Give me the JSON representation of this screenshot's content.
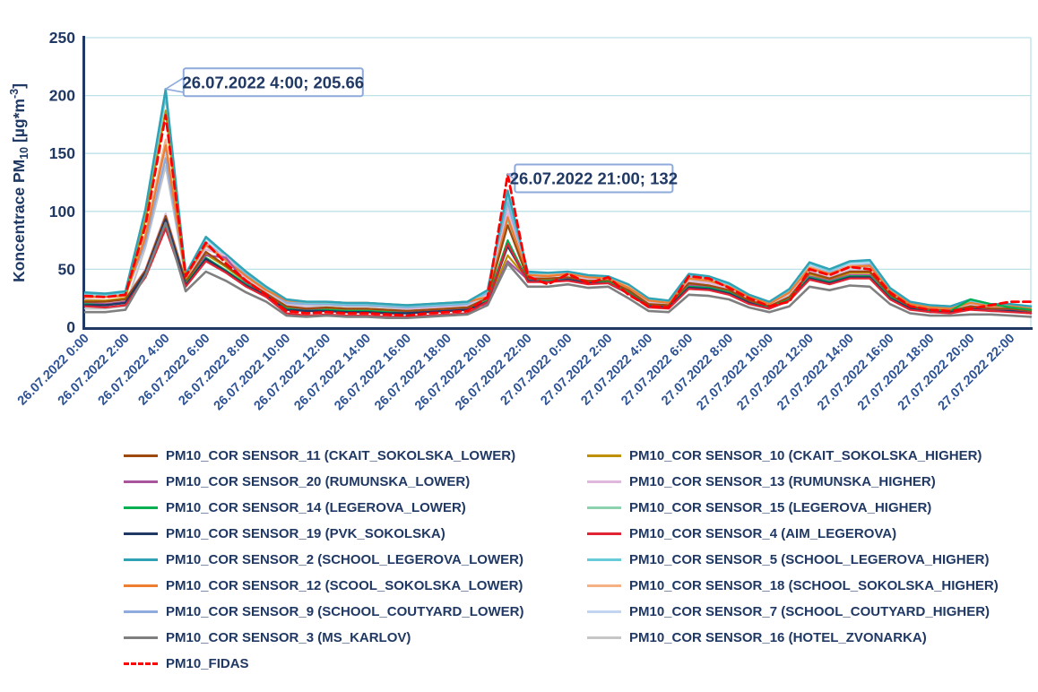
{
  "chart": {
    "y_axis": {
      "title": "Koncentrace PM10 [µg*m-3]",
      "title_parts": [
        {
          "t": "Koncentrace PM"
        },
        {
          "t": "10",
          "sub": true
        },
        {
          "t": " [µg*m"
        },
        {
          "t": "-3",
          "sup": true
        },
        {
          "t": "]"
        }
      ],
      "ticks": [
        0,
        50,
        100,
        150,
        200,
        250
      ]
    },
    "x_axis": {
      "tick_labels": [
        "26.07.2022 0:00",
        "26.07.2022 2:00",
        "26.07.2022 4:00",
        "26.07.2022 6:00",
        "26.07.2022 8:00",
        "26.07.2022 10:00",
        "26.07.2022 12:00",
        "26.07.2022 14:00",
        "26.07.2022 16:00",
        "26.07.2022 18:00",
        "26.07.2022 20:00",
        "26.07.2022 22:00",
        "27.07.2022 0:00",
        "27.07.2022 2:00",
        "27.07.2022 4:00",
        "27.07.2022 6:00",
        "27.07.2022 8:00",
        "27.07.2022 10:00",
        "27.07.2022 12:00",
        "27.07.2022 14:00",
        "27.07.2022 16:00",
        "27.07.2022 18:00",
        "27.07.2022 20:00",
        "27.07.2022 22:00"
      ]
    },
    "callouts": [
      {
        "text": "26.07.2022 4:00; 205.66",
        "point_index": 4,
        "value": 205.66
      },
      {
        "text": "26.07.2022 21:00; 132",
        "point_index": 21,
        "value": 132
      }
    ],
    "colors": {
      "axis": "#1F3864",
      "tick_text": "#1F3864",
      "x_tick_text": "#2E5395",
      "grid": "#BCE2E8",
      "callout_border": "#8EAADB",
      "callout_text": "#1F3864",
      "background": "#FFFFFF"
    }
  },
  "chart_data": {
    "type": "line",
    "title": "",
    "ylabel": "Koncentrace PM10 [µg*m-3]",
    "ylim": [
      0,
      250
    ],
    "grid": "horizontal",
    "legend_position": "bottom",
    "x_start": "26.07.2022 0:00",
    "x_end": "27.07.2022 23:00",
    "x_step_hours": 1,
    "n_points": 48,
    "annotated_points": [
      {
        "label": "26.07.2022 4:00; 205.66",
        "series": "PM10_COR SENSOR_2 (SCHOOL_LEGEROVA_LOWER)"
      },
      {
        "label": "26.07.2022 21:00; 132",
        "series": "PM10_FIDAS"
      }
    ],
    "series": [
      {
        "name": "PM10_COR SENSOR_7 (SCHOOL_COUTYARD_HIGHER)",
        "color": "#C3D4F0",
        "dashed": false,
        "width": 2.2,
        "values": [
          28,
          27,
          29,
          76,
          152,
          44,
          74,
          60,
          46,
          33,
          22,
          20,
          21,
          20,
          20,
          19,
          18,
          19,
          20,
          21,
          30,
          112,
          46,
          46,
          47,
          44,
          43,
          36,
          24,
          22,
          44,
          42,
          36,
          27,
          21,
          31,
          53,
          48,
          54,
          55,
          32,
          21,
          18,
          17,
          22,
          19,
          19,
          17
        ]
      },
      {
        "name": "PM10_COR SENSOR_16 (HOTEL_ZVONARKA)",
        "color": "#C6C6C6",
        "dashed": false,
        "width": 2.2,
        "values": [
          16,
          16,
          18,
          69,
          139,
          42,
          70,
          57,
          43,
          31,
          20,
          18,
          19,
          18,
          18,
          17,
          16,
          17,
          18,
          19,
          28,
          104,
          44,
          44,
          45,
          42,
          41,
          34,
          22,
          20,
          41,
          39,
          34,
          25,
          19,
          29,
          50,
          45,
          51,
          52,
          30,
          19,
          16,
          16,
          20,
          17,
          17,
          15
        ]
      },
      {
        "name": "PM10_COR SENSOR_9 (SCHOOL_COUTYARD_LOWER)",
        "color": "#8FAADC",
        "dashed": false,
        "width": 2.2,
        "values": [
          27,
          26,
          28,
          73,
          146,
          43,
          73,
          59,
          45,
          33,
          21,
          20,
          20,
          19,
          19,
          18,
          17,
          18,
          19,
          20,
          29,
          108,
          46,
          45,
          46,
          43,
          42,
          35,
          23,
          21,
          43,
          41,
          35,
          26,
          20,
          30,
          52,
          47,
          53,
          54,
          31,
          20,
          17,
          17,
          22,
          18,
          18,
          16
        ]
      },
      {
        "name": "PM10_COR SENSOR_5 (SCHOOL_LEGEROVA_HIGHER)",
        "color": "#67CBDA",
        "dashed": false,
        "width": 2.2,
        "values": [
          29,
          28,
          30,
          99,
          199,
          45,
          77,
          62,
          47,
          34,
          23,
          21,
          21,
          20,
          20,
          19,
          18,
          19,
          20,
          21,
          31,
          114,
          47,
          46,
          47,
          44,
          44,
          36,
          24,
          22,
          45,
          43,
          37,
          27,
          22,
          32,
          55,
          49,
          56,
          57,
          33,
          21,
          19,
          18,
          23,
          20,
          19,
          18
        ]
      },
      {
        "name": "PM10_COR SENSOR_18 (SCHOOL_SOKOLSKA_HIGHER)",
        "color": "#F4B183",
        "dashed": false,
        "width": 2.2,
        "values": [
          27,
          26,
          28,
          81,
          162,
          43,
          72,
          58,
          44,
          32,
          24,
          22,
          22,
          21,
          21,
          20,
          19,
          20,
          21,
          22,
          27,
          98,
          45,
          45,
          46,
          43,
          42,
          35,
          23,
          21,
          42,
          41,
          35,
          26,
          20,
          30,
          52,
          46,
          53,
          53,
          31,
          20,
          17,
          16,
          21,
          18,
          18,
          16
        ]
      },
      {
        "name": "PM10_COR SENSOR_13 (RUMUNSKA_HIGHER)",
        "color": "#E0B7DD",
        "dashed": false,
        "width": 2.2,
        "values": [
          24,
          23,
          25,
          50,
          98,
          40,
          67,
          62,
          41,
          30,
          19,
          17,
          17,
          16,
          16,
          15,
          15,
          16,
          17,
          18,
          28,
          100,
          43,
          42,
          48,
          41,
          44,
          32,
          21,
          19,
          39,
          38,
          33,
          24,
          19,
          27,
          48,
          43,
          49,
          49,
          29,
          18,
          16,
          15,
          19,
          17,
          16,
          15
        ]
      },
      {
        "name": "PM10_COR SENSOR_15 (LEGEROVA_HIGHER)",
        "color": "#8ED1AE",
        "dashed": false,
        "width": 2.2,
        "values": [
          22,
          22,
          24,
          46,
          92,
          39,
          65,
          53,
          40,
          29,
          18,
          16,
          17,
          16,
          16,
          15,
          14,
          15,
          16,
          17,
          26,
          93,
          42,
          42,
          43,
          40,
          40,
          32,
          20,
          19,
          38,
          36,
          32,
          23,
          18,
          26,
          47,
          42,
          48,
          48,
          28,
          18,
          15,
          15,
          18,
          16,
          16,
          15
        ]
      },
      {
        "name": "PM10_COR SENSOR_12 (SCOOL_SOKOLSKA_LOWER)",
        "color": "#ED7D31",
        "dashed": false,
        "width": 2.2,
        "values": [
          26,
          26,
          27,
          78,
          157,
          43,
          71,
          58,
          44,
          32,
          23,
          22,
          22,
          21,
          21,
          20,
          19,
          20,
          21,
          22,
          26,
          95,
          45,
          44,
          46,
          43,
          42,
          34,
          23,
          21,
          42,
          40,
          35,
          26,
          20,
          30,
          51,
          46,
          52,
          53,
          31,
          20,
          17,
          16,
          21,
          18,
          18,
          16
        ]
      },
      {
        "name": "PM10_COR SENSOR_2 (SCHOOL_LEGEROVA_LOWER)",
        "color": "#2FA3B5",
        "dashed": false,
        "width": 2.4,
        "values": [
          30,
          29,
          31,
          102,
          205.66,
          46,
          78,
          63,
          48,
          35,
          24,
          22,
          22,
          21,
          21,
          20,
          19,
          20,
          21,
          22,
          32,
          118,
          48,
          47,
          48,
          45,
          44,
          37,
          25,
          23,
          46,
          44,
          38,
          28,
          22,
          33,
          56,
          50,
          57,
          58,
          34,
          22,
          19,
          18,
          24,
          20,
          20,
          18
        ]
      },
      {
        "name": "PM10_COR SENSOR_10 (CKAIT_SOKOLSKA_HIGHER)",
        "color": "#BF9000",
        "dashed": false,
        "width": 2.2,
        "values": [
          23,
          23,
          25,
          93,
          187,
          40,
          63,
          52,
          39,
          29,
          17,
          16,
          16,
          15,
          15,
          14,
          14,
          15,
          16,
          17,
          21,
          62,
          41,
          41,
          42,
          40,
          40,
          31,
          20,
          18,
          37,
          36,
          31,
          23,
          18,
          26,
          46,
          41,
          47,
          47,
          27,
          17,
          15,
          14,
          18,
          16,
          15,
          14
        ]
      },
      {
        "name": "PM10_COR SENSOR_20 (RUMUNSKA_LOWER)",
        "color": "#A9559D",
        "dashed": false,
        "width": 2.2,
        "values": [
          21,
          20,
          22,
          48,
          95,
          38,
          62,
          60,
          38,
          28,
          16,
          15,
          15,
          14,
          14,
          13,
          13,
          14,
          15,
          16,
          20,
          57,
          41,
          40,
          42,
          39,
          39,
          30,
          19,
          18,
          36,
          35,
          30,
          22,
          17,
          25,
          44,
          40,
          45,
          45,
          26,
          17,
          14,
          14,
          17,
          15,
          15,
          13
        ]
      },
      {
        "name": "PM10_COR SENSOR_11 (CKAIT_SOKOLSKA_LOWER)",
        "color": "#9E490D",
        "dashed": false,
        "width": 2.2,
        "values": [
          22,
          22,
          24,
          49,
          96,
          39,
          65,
          53,
          40,
          29,
          18,
          16,
          17,
          16,
          16,
          15,
          14,
          15,
          16,
          17,
          25,
          88,
          42,
          42,
          43,
          40,
          40,
          32,
          20,
          19,
          38,
          36,
          32,
          23,
          18,
          26,
          47,
          42,
          48,
          48,
          28,
          18,
          15,
          14,
          18,
          16,
          16,
          14
        ]
      },
      {
        "name": "PM10_COR SENSOR_14 (LEGEROVA_LOWER)",
        "color": "#00B050",
        "dashed": false,
        "width": 2.2,
        "values": [
          20,
          19,
          21,
          44,
          88,
          37,
          60,
          49,
          37,
          27,
          16,
          14,
          15,
          14,
          14,
          13,
          12,
          13,
          14,
          15,
          23,
          75,
          40,
          40,
          41,
          38,
          39,
          30,
          18,
          17,
          35,
          34,
          30,
          21,
          17,
          24,
          43,
          39,
          44,
          44,
          26,
          16,
          14,
          14,
          24,
          20,
          17,
          15
        ]
      },
      {
        "name": "PM10_COR SENSOR_19 (PVK_SOKOLSKA)",
        "color": "#1F3864",
        "dashed": false,
        "width": 2.4,
        "values": [
          19,
          19,
          21,
          47,
          93,
          36,
          59,
          48,
          36,
          27,
          15,
          14,
          14,
          13,
          13,
          12,
          12,
          13,
          14,
          15,
          22,
          70,
          40,
          39,
          41,
          38,
          38,
          29,
          18,
          17,
          34,
          33,
          29,
          21,
          16,
          23,
          42,
          38,
          43,
          43,
          25,
          16,
          13,
          13,
          16,
          14,
          14,
          12
        ]
      },
      {
        "name": "PM10_COR SENSOR_4 (AIM_LEGEROVA)",
        "color": "#E02433",
        "dashed": false,
        "width": 2.2,
        "values": [
          18,
          17,
          19,
          43,
          85,
          35,
          57,
          47,
          35,
          26,
          12,
          10,
          11,
          10,
          10,
          9,
          9,
          10,
          11,
          12,
          22,
          72,
          39,
          39,
          40,
          37,
          38,
          29,
          17,
          16,
          33,
          32,
          28,
          20,
          16,
          23,
          41,
          37,
          42,
          42,
          24,
          15,
          13,
          12,
          15,
          14,
          13,
          12
        ]
      },
      {
        "name": "PM10_COR SENSOR_3 (MS_KARLOV)",
        "color": "#7F7F7F",
        "dashed": false,
        "width": 2.6,
        "values": [
          13,
          13,
          15,
          45,
          90,
          31,
          48,
          40,
          30,
          22,
          10,
          9,
          10,
          9,
          9,
          8,
          8,
          9,
          10,
          11,
          19,
          55,
          35,
          35,
          37,
          34,
          35,
          25,
          14,
          13,
          28,
          27,
          24,
          17,
          13,
          18,
          35,
          32,
          36,
          35,
          20,
          12,
          10,
          10,
          11,
          11,
          10,
          9
        ]
      },
      {
        "name": "PM10_FIDAS",
        "color": "#FF0000",
        "dashed": true,
        "width": 2.8,
        "values": [
          27,
          26,
          28,
          88,
          183,
          44,
          73,
          55,
          40,
          28,
          14,
          12,
          13,
          12,
          12,
          11,
          10,
          12,
          13,
          14,
          26,
          132,
          44,
          37,
          46,
          38,
          43,
          28,
          18,
          17,
          44,
          42,
          34,
          25,
          18,
          22,
          50,
          45,
          52,
          50,
          30,
          18,
          15,
          14,
          16,
          19,
          22,
          22
        ]
      }
    ]
  },
  "legend": {
    "left": [
      "PM10_COR SENSOR_11 (CKAIT_SOKOLSKA_LOWER)",
      "PM10_COR SENSOR_20 (RUMUNSKA_LOWER)",
      "PM10_COR SENSOR_14 (LEGEROVA_LOWER)",
      "PM10_COR SENSOR_19 (PVK_SOKOLSKA)",
      "PM10_COR SENSOR_2 (SCHOOL_LEGEROVA_LOWER)",
      "PM10_COR SENSOR_12 (SCOOL_SOKOLSKA_LOWER)",
      "PM10_COR SENSOR_9 (SCHOOL_COUTYARD_LOWER)",
      "PM10_COR SENSOR_3 (MS_KARLOV)",
      "PM10_FIDAS"
    ],
    "right": [
      "PM10_COR SENSOR_10 (CKAIT_SOKOLSKA_HIGHER)",
      "PM10_COR SENSOR_13 (RUMUNSKA_HIGHER)",
      "PM10_COR SENSOR_15 (LEGEROVA_HIGHER)",
      "PM10_COR SENSOR_4 (AIM_LEGEROVA)",
      "PM10_COR SENSOR_5 (SCHOOL_LEGEROVA_HIGHER)",
      "PM10_COR SENSOR_18 (SCHOOL_SOKOLSKA_HIGHER)",
      "PM10_COR SENSOR_7 (SCHOOL_COUTYARD_HIGHER)",
      "PM10_COR SENSOR_16 (HOTEL_ZVONARKA)"
    ]
  }
}
